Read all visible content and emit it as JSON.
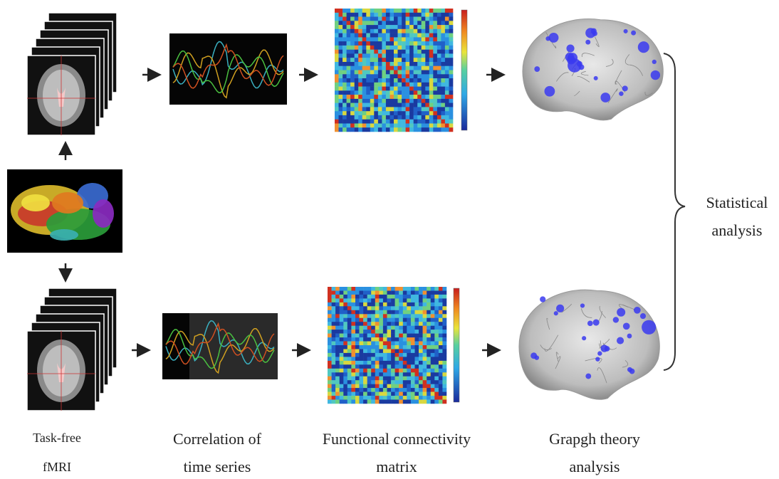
{
  "labels": [
    {
      "lines": [
        "Task-free",
        "fMRI"
      ]
    },
    {
      "lines": [
        "Correlation of",
        "time series"
      ]
    },
    {
      "lines": [
        "Functional connectivity",
        "matrix"
      ]
    },
    {
      "lines": [
        "Grapgh theory",
        "analysis"
      ]
    }
  ],
  "side_label": {
    "lines": [
      "Statistical",
      "analysis"
    ]
  }
}
